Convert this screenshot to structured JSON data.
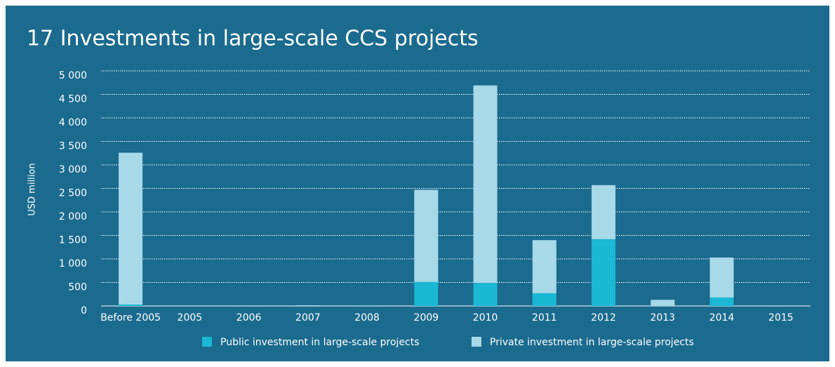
{
  "chart_data": {
    "type": "bar",
    "stacked": true,
    "title": "17 Investments in large-scale CCS projects",
    "y_label": "USD million",
    "categories": [
      "Before 2005",
      "2005",
      "2006",
      "2007",
      "2008",
      "2009",
      "2010",
      "2011",
      "2012",
      "2013",
      "2014",
      "2015"
    ],
    "series": [
      {
        "name": "Public investment in large-scale projects",
        "color": "#1ab8d3",
        "values": [
          30,
          0,
          0,
          0,
          0,
          510,
          490,
          270,
          1420,
          0,
          180,
          0
        ]
      },
      {
        "name": "Private investment in large-scale projects",
        "color": "#a8d9e9",
        "values": [
          3230,
          0,
          0,
          15,
          10,
          1960,
          4200,
          1130,
          1150,
          130,
          850,
          0
        ]
      }
    ],
    "ylim": [
      0,
      5000
    ],
    "yticks": [
      0,
      500,
      {
        "value": 1000,
        "label": "1 000"
      },
      {
        "value": 1500,
        "label": "1 500"
      },
      {
        "value": 2000,
        "label": "2 000"
      },
      {
        "value": 2500,
        "label": "2 500"
      },
      {
        "value": 3000,
        "label": "3 000"
      },
      {
        "value": 3500,
        "label": "3 500"
      },
      {
        "value": 4000,
        "label": "4 000"
      },
      {
        "value": 4500,
        "label": "4 500"
      },
      {
        "value": 5000,
        "label": "5 000"
      }
    ],
    "grid": true,
    "legend": "bottom"
  }
}
